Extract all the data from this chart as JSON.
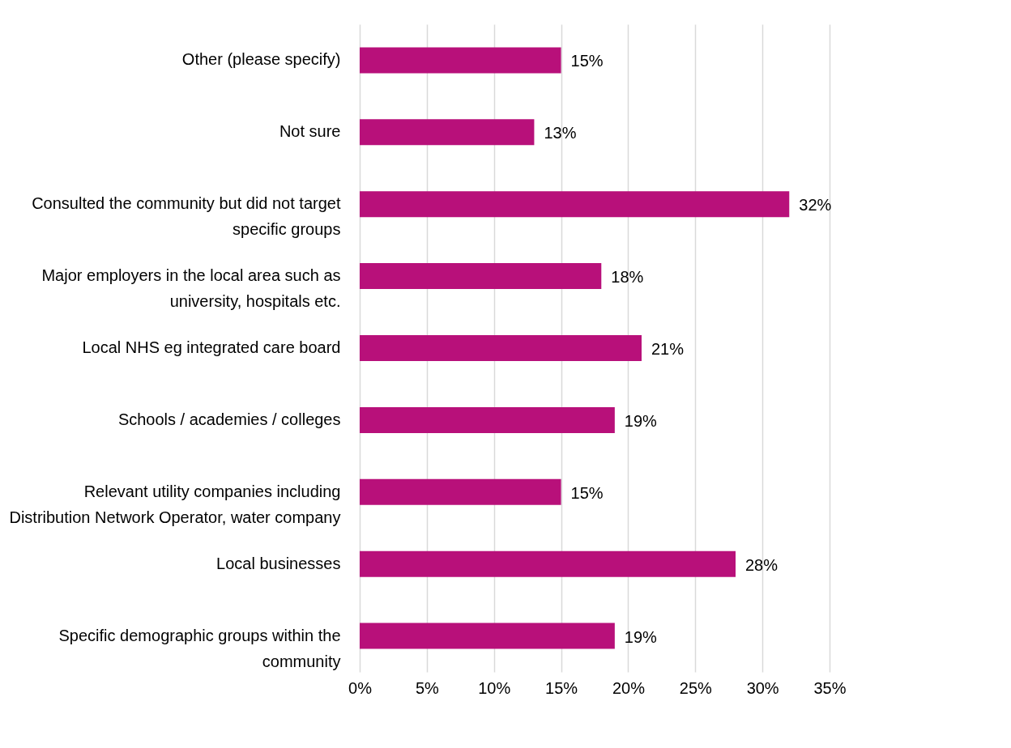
{
  "chart_data": {
    "type": "bar",
    "orientation": "horizontal",
    "categories": [
      "Other (please specify)",
      "Not sure",
      "Consulted the community but did not target specific groups",
      "Major employers in the local area such as university, hospitals etc.",
      "Local NHS eg integrated care board",
      "Schools / academies / colleges",
      "Relevant utility companies including Distribution Network Operator, water company",
      "Local businesses",
      "Specific demographic groups within the community"
    ],
    "values": [
      15,
      13,
      32,
      18,
      21,
      19,
      15,
      28,
      19
    ],
    "value_labels": [
      "15%",
      "13%",
      "32%",
      "18%",
      "21%",
      "19%",
      "15%",
      "28%",
      "19%"
    ],
    "color": "#b8107a",
    "xlim": [
      0,
      35
    ],
    "xticks": [
      {
        "value": 0,
        "label": "0%"
      },
      {
        "value": 5,
        "label": "5%"
      },
      {
        "value": 10,
        "label": "10%"
      },
      {
        "value": 15,
        "label": "15%"
      },
      {
        "value": 20,
        "label": "20%"
      },
      {
        "value": 25,
        "label": "25%"
      },
      {
        "value": 30,
        "label": "30%"
      },
      {
        "value": 35,
        "label": "35%"
      }
    ],
    "grid": "x"
  }
}
